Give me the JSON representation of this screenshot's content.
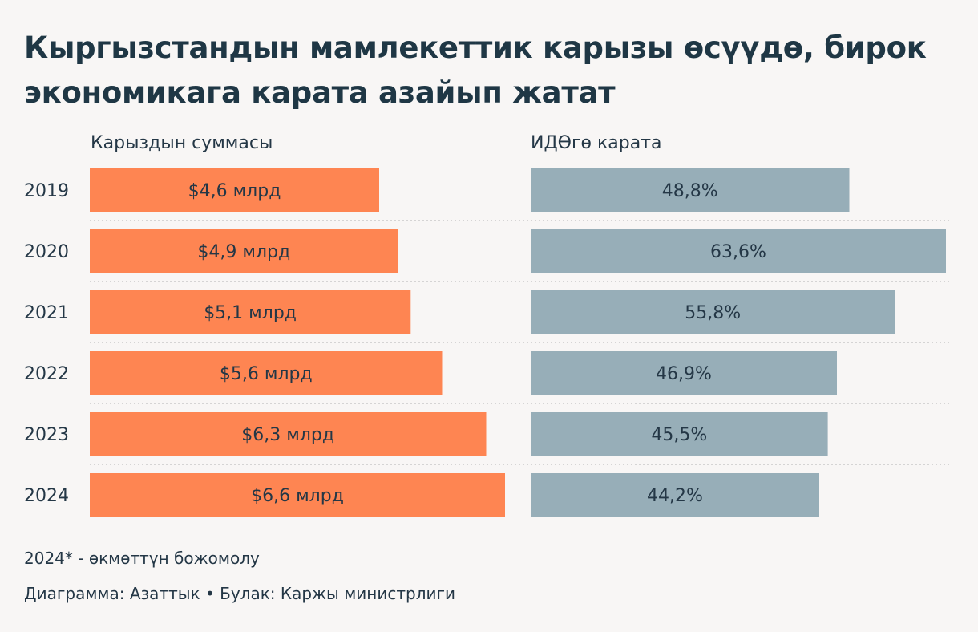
{
  "title": "Кыргызстандын мамлекеттик карызы өсүүдө, бирок экономикага карата азайып жатат",
  "colors": {
    "background": "#f8f6f5",
    "debt_bar": "#fe8552",
    "gdp_bar": "#97aeb8",
    "text": "#243746",
    "divider": "#c9c9c9"
  },
  "chart_data": {
    "type": "bar",
    "orientation": "horizontal",
    "title": "Кыргызстандын мамлекеттик карызы өсүүдө, бирок экономикага карата азайып жатат",
    "categories": [
      "2019",
      "2020",
      "2021",
      "2022",
      "2023",
      "2024"
    ],
    "series": [
      {
        "name": "Карыздын суммасы",
        "values": [
          4.6,
          4.9,
          5.1,
          5.6,
          6.3,
          6.6
        ],
        "labels": [
          "$4,6 млрд",
          "$4,9 млрд",
          "$5,1 млрд",
          "$5,6 млрд",
          "$6,3 млрд",
          "$6,6 млрд"
        ],
        "unit": "млрд $",
        "xlim": [
          0,
          6.6
        ]
      },
      {
        "name": "ИДӨгө карата",
        "values": [
          48.8,
          63.6,
          55.8,
          46.9,
          45.5,
          44.2
        ],
        "labels": [
          "48,8%",
          "63,6%",
          "55,8%",
          "46,9%",
          "45,5%",
          "44,2%"
        ],
        "unit": "%",
        "xlim": [
          0,
          63.6
        ]
      }
    ],
    "xlabel": "",
    "ylabel": "",
    "grid": false,
    "legend": "column-headers"
  },
  "footnotes": {
    "note": "2024* - өкмөттүн божомолу",
    "source": "Диаграмма: Азаттык • Булак: Каржы министрлиги"
  }
}
